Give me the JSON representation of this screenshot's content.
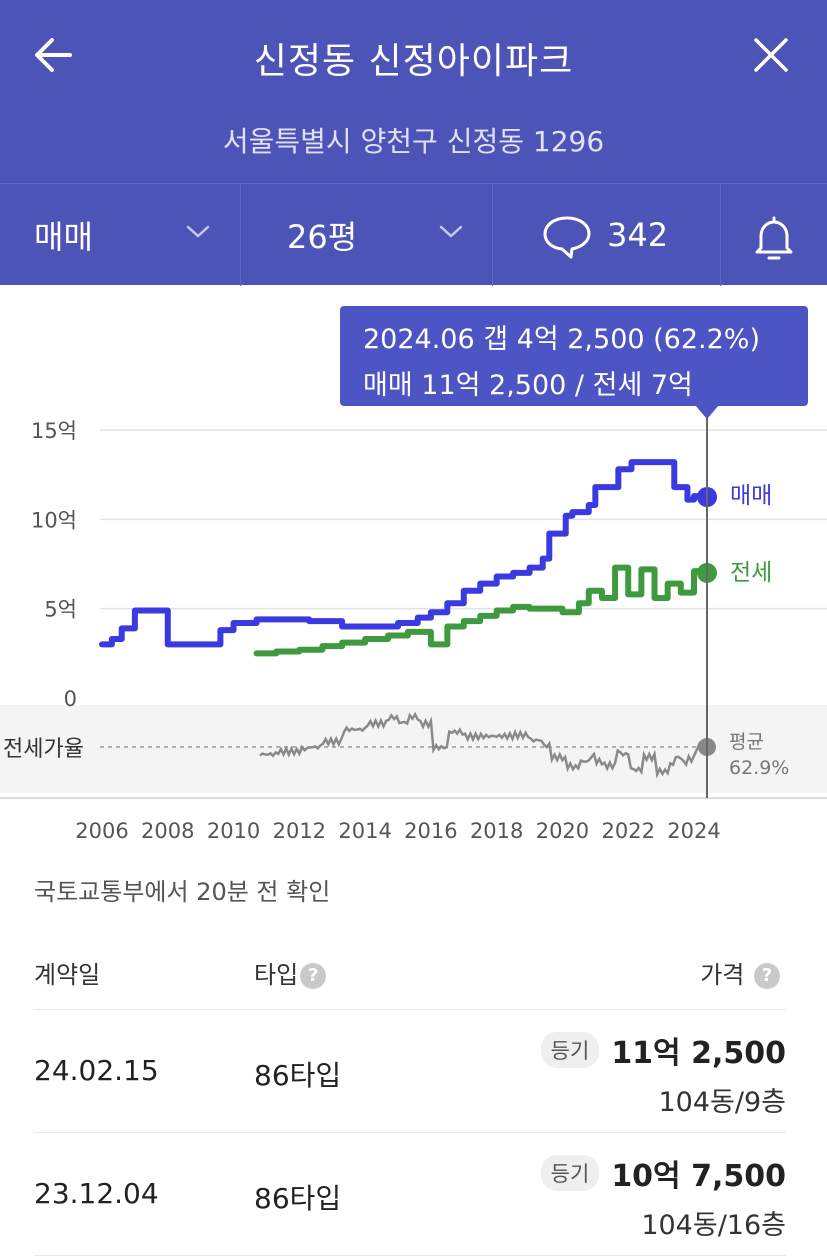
{
  "header": {
    "title": "신정동 신정아이파크",
    "address": "서울특별시 양천구 신정동 1296"
  },
  "filters": {
    "deal_type": "매매",
    "size": "26평",
    "comment_count": "342"
  },
  "colors": {
    "header_bg": "#4d54b7",
    "sale_line": "#3a3ae0",
    "jeonse_line": "#3f9a3f",
    "ratio_line": "#8a8a8a"
  },
  "tooltip": {
    "line1": "2024.06  갭 4억 2,500 (62.2%)",
    "line2": "매매 11억 2,500 / 전세 7억"
  },
  "chart_data": {
    "type": "line",
    "ylim": [
      0,
      15
    ],
    "y_ticks": [
      "15억",
      "10억",
      "5억",
      "0"
    ],
    "x_ticks": [
      "2006",
      "2008",
      "2010",
      "2012",
      "2014",
      "2016",
      "2018",
      "2020",
      "2022",
      "2024"
    ],
    "series": [
      {
        "name": "매매",
        "x": [
          2006.0,
          2006.3,
          2006.6,
          2007.0,
          2007.6,
          2008.0,
          2008.3,
          2009.0,
          2009.6,
          2010.0,
          2010.7,
          2011.3,
          2011.6,
          2012.3,
          2013.0,
          2013.3,
          2014.0,
          2014.6,
          2015.0,
          2015.6,
          2016.0,
          2016.5,
          2017.0,
          2017.5,
          2018.0,
          2018.5,
          2019.0,
          2019.4,
          2019.6,
          2020.1,
          2020.3,
          2020.8,
          2021.0,
          2021.5,
          2021.7,
          2022.1,
          2022.6,
          2023.0,
          2023.4,
          2023.8,
          2024.0,
          2024.4
        ],
        "values": [
          3.0,
          3.3,
          3.9,
          4.9,
          4.9,
          3.0,
          3.0,
          3.0,
          3.8,
          4.2,
          4.4,
          4.4,
          4.4,
          4.3,
          4.3,
          4.0,
          4.0,
          4.0,
          4.2,
          4.5,
          4.8,
          5.3,
          6.0,
          6.4,
          6.8,
          7.0,
          7.3,
          7.8,
          9.2,
          10.2,
          10.4,
          10.8,
          11.8,
          11.8,
          12.8,
          13.2,
          13.2,
          13.2,
          11.8,
          11.1,
          11.3,
          11.25
        ]
      },
      {
        "name": "전세",
        "x": [
          2010.7,
          2011.3,
          2012.0,
          2012.7,
          2013.3,
          2014.0,
          2014.7,
          2015.3,
          2016.0,
          2016.5,
          2017.0,
          2017.5,
          2018.0,
          2018.5,
          2019.0,
          2019.5,
          2020.0,
          2020.5,
          2020.8,
          2021.2,
          2021.6,
          2022.0,
          2022.4,
          2022.8,
          2023.2,
          2023.6,
          2024.0,
          2024.4
        ],
        "values": [
          2.5,
          2.6,
          2.7,
          2.9,
          3.1,
          3.3,
          3.5,
          3.7,
          3.0,
          4.0,
          4.3,
          4.6,
          4.9,
          5.1,
          5.0,
          5.0,
          4.8,
          5.3,
          6.0,
          5.6,
          7.3,
          5.8,
          7.2,
          5.6,
          6.4,
          5.9,
          7.1,
          7.0
        ]
      }
    ],
    "series_labels": {
      "sale": "매매",
      "jeonse": "전세"
    },
    "ratio": {
      "label": "전세가율",
      "avg_label": "평균",
      "avg_value": "62.9%"
    }
  },
  "source": "국토교통부에서 20분 전 확인",
  "table": {
    "headers": {
      "date": "계약일",
      "type": "타입",
      "price": "가격"
    },
    "rows": [
      {
        "date": "24.02.15",
        "type": "86타입",
        "badge": "등기",
        "price": "11억 2,500",
        "unit": "104동/9층"
      },
      {
        "date": "23.12.04",
        "type": "86타입",
        "badge": "등기",
        "price": "10억 7,500",
        "unit": "104동/16층"
      }
    ]
  }
}
